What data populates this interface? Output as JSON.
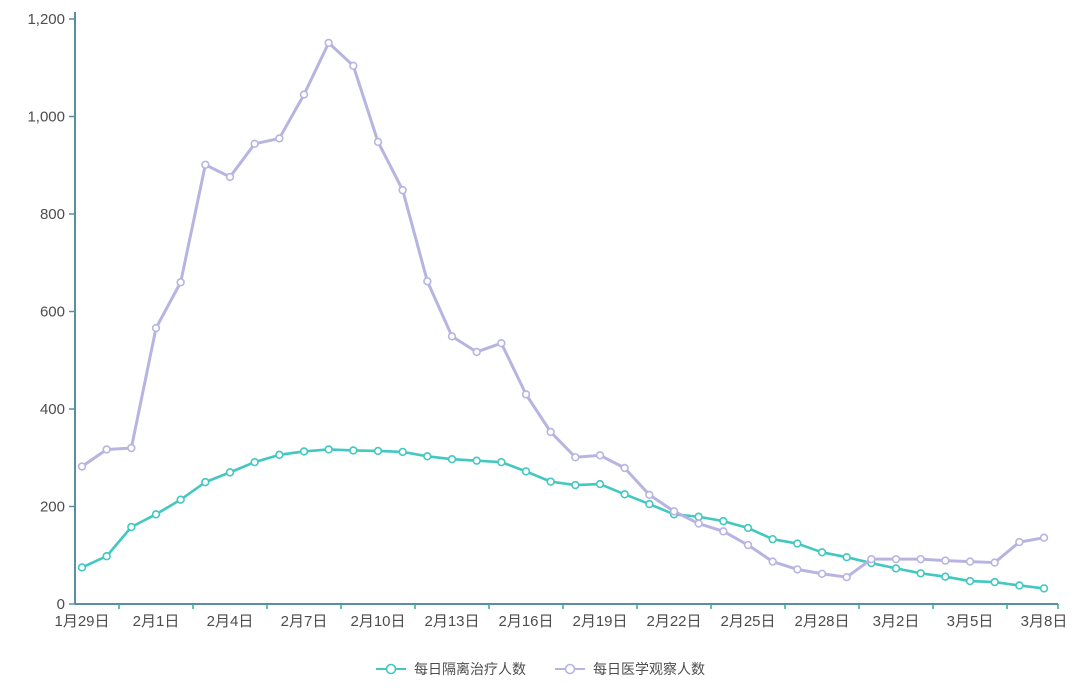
{
  "chart_data": {
    "type": "line",
    "categories": [
      "1月29日",
      "1月30日",
      "1月31日",
      "2月1日",
      "2月2日",
      "2月3日",
      "2月4日",
      "2月5日",
      "2月6日",
      "2月7日",
      "2月8日",
      "2月9日",
      "2月10日",
      "2月11日",
      "2月12日",
      "2月13日",
      "2月14日",
      "2月15日",
      "2月16日",
      "2月17日",
      "2月18日",
      "2月19日",
      "2月20日",
      "2月21日",
      "2月22日",
      "2月23日",
      "2月24日",
      "2月25日",
      "2月26日",
      "2月27日",
      "2月28日",
      "2月29日",
      "3月1日",
      "3月2日",
      "3月3日",
      "3月4日",
      "3月5日",
      "3月6日",
      "3月7日",
      "3月8日"
    ],
    "x_axis": {
      "label_every_n": 3,
      "tick_labels": [
        "1月29日",
        "2月1日",
        "2月4日",
        "2月7日",
        "2月10日",
        "2月13日",
        "2月16日",
        "2月19日",
        "2月22日",
        "2月25日",
        "2月28日",
        "3月2日",
        "3月5日",
        "3月8日"
      ]
    },
    "y_axis": {
      "min": 0,
      "max": 1200,
      "interval": 200,
      "tick_labels": [
        "0",
        "200",
        "400",
        "600",
        "800",
        "1,000",
        "1,200"
      ]
    },
    "series": [
      {
        "key": "isolation-treatment",
        "name": "每日隔离治疗人数",
        "color": "#41c8c0",
        "line_width": 2.6,
        "values": [
          75,
          98,
          158,
          184,
          214,
          250,
          270,
          291,
          306,
          313,
          317,
          315,
          314,
          312,
          303,
          297,
          294,
          291,
          272,
          251,
          244,
          246,
          225,
          205,
          184,
          179,
          170,
          156,
          133,
          124,
          106,
          96,
          84,
          73,
          63,
          56,
          47,
          45,
          38,
          32
        ]
      },
      {
        "key": "medical-observation",
        "name": "每日医学观察人数",
        "color": "#b8b4e2",
        "line_width": 3,
        "values": [
          282,
          317,
          320,
          566,
          660,
          901,
          876,
          944,
          955,
          1045,
          1151,
          1104,
          948,
          849,
          662,
          549,
          517,
          535,
          430,
          353,
          301,
          305,
          279,
          224,
          190,
          165,
          149,
          121,
          87,
          71,
          62,
          55,
          92,
          92,
          92,
          89,
          87,
          85,
          127,
          136
        ]
      }
    ],
    "title": "",
    "xlabel": "",
    "ylabel": "",
    "grid": false,
    "marker": "hollow-circle",
    "legend_position": "bottom-center"
  },
  "axis_style": {
    "axis_line_color": "#5a8fa2",
    "tick_color": "#2fae93",
    "label_color": "#4d4d4d"
  }
}
